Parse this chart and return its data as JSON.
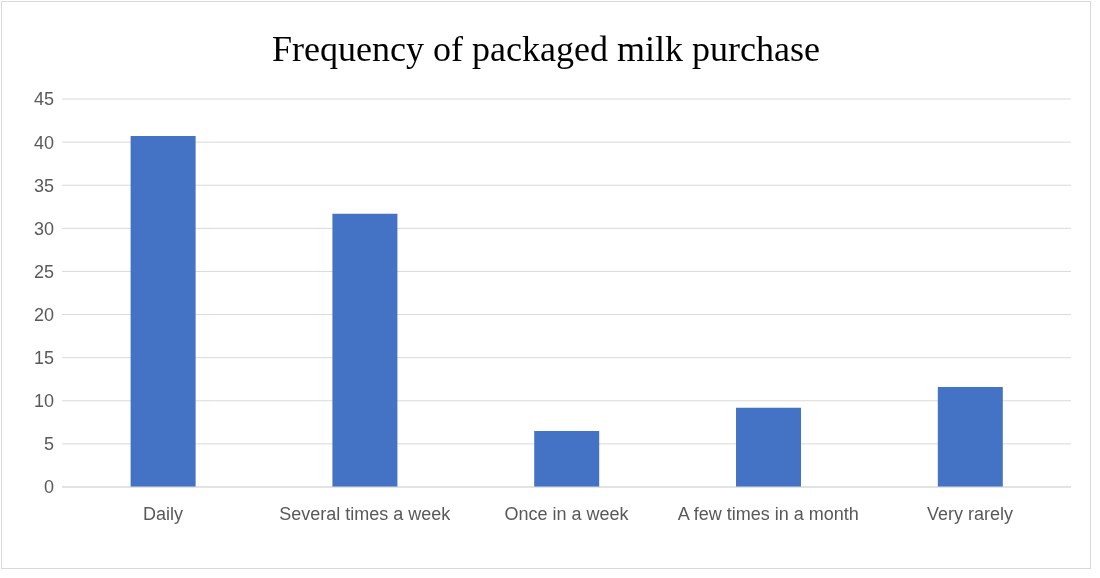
{
  "chart_data": {
    "type": "bar",
    "title": "Frequency of packaged milk purchase",
    "categories": [
      "Daily",
      "Several times a week",
      "Once in a week",
      "A few times in a month",
      "Very rarely"
    ],
    "values": [
      40.7,
      31.7,
      6.5,
      9.2,
      11.6
    ],
    "color": "#4472c4",
    "ylim": [
      0,
      45
    ],
    "yticks": [
      0,
      5,
      10,
      15,
      20,
      25,
      30,
      35,
      40,
      45
    ],
    "grid": "y"
  }
}
